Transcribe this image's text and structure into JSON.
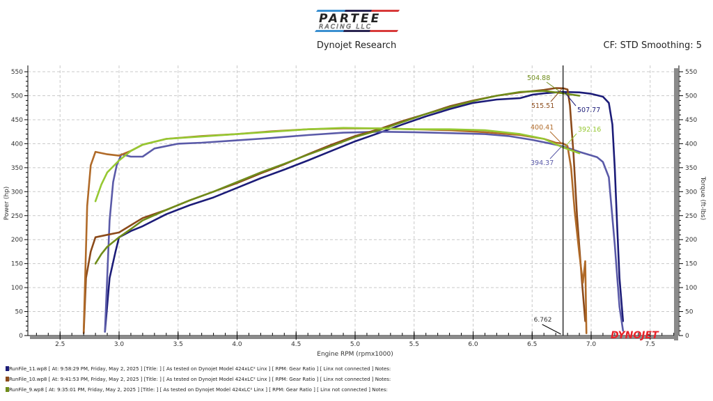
{
  "header": {
    "logo_text_top": "PARTEE",
    "logo_text_bottom": "RACING LLC",
    "title": "Dynojet Research",
    "correction": "CF: STD Smoothing: 5"
  },
  "brand_logo": "DYNOJET",
  "chart_data": {
    "type": "line",
    "title": "Dynojet Research",
    "subtitle": "CF: STD Smoothing: 5",
    "xlabel": "Engine RPM (rpmx1000)",
    "ylabel": "Power (hp)",
    "y2label": "Torque (ft-lbs)",
    "xlim": [
      2.3,
      7.75
    ],
    "ylim": [
      0,
      560
    ],
    "y2lim": [
      0,
      560
    ],
    "x_ticks": [
      "2.5",
      "3.0",
      "3.5",
      "4.0",
      "4.5",
      "5.0",
      "5.5",
      "6.0",
      "6.5",
      "7.0",
      "7.5"
    ],
    "y_ticks": [
      "0",
      "50",
      "100",
      "150",
      "200",
      "250",
      "300",
      "350",
      "400",
      "450",
      "500",
      "550"
    ],
    "y2_ticks": [
      "0",
      "50",
      "100",
      "150",
      "200",
      "250",
      "300",
      "350",
      "400",
      "450",
      "500",
      "550"
    ],
    "grid": true,
    "cursor": {
      "rpm": "6.762"
    },
    "series": [
      {
        "name": "RunFile_11.wp8 Power",
        "run": "RunFile_11",
        "metric": "power",
        "color": "#1c1c78",
        "points": [
          [
            2.88,
            8
          ],
          [
            2.92,
            120
          ],
          [
            2.97,
            175
          ],
          [
            3.0,
            205
          ],
          [
            3.1,
            218
          ],
          [
            3.2,
            228
          ],
          [
            3.4,
            253
          ],
          [
            3.6,
            272
          ],
          [
            3.8,
            288
          ],
          [
            4.0,
            308
          ],
          [
            4.2,
            328
          ],
          [
            4.4,
            346
          ],
          [
            4.6,
            365
          ],
          [
            4.8,
            385
          ],
          [
            5.0,
            405
          ],
          [
            5.2,
            422
          ],
          [
            5.4,
            440
          ],
          [
            5.6,
            457
          ],
          [
            5.8,
            472
          ],
          [
            6.0,
            485
          ],
          [
            6.2,
            492
          ],
          [
            6.4,
            495
          ],
          [
            6.5,
            502
          ],
          [
            6.6,
            505
          ],
          [
            6.7,
            507
          ],
          [
            6.762,
            507.77
          ],
          [
            6.9,
            507
          ],
          [
            7.0,
            504
          ],
          [
            7.1,
            498
          ],
          [
            7.15,
            485
          ],
          [
            7.18,
            440
          ],
          [
            7.2,
            350
          ],
          [
            7.22,
            230
          ],
          [
            7.24,
            120
          ],
          [
            7.26,
            60
          ],
          [
            7.27,
            30
          ]
        ]
      },
      {
        "name": "RunFile_11.wp8 Torque",
        "run": "RunFile_11",
        "metric": "torque",
        "color": "#5a5aa8",
        "points": [
          [
            2.88,
            8
          ],
          [
            2.92,
            240
          ],
          [
            2.95,
            320
          ],
          [
            2.98,
            355
          ],
          [
            3.02,
            378
          ],
          [
            3.1,
            373
          ],
          [
            3.2,
            373
          ],
          [
            3.3,
            390
          ],
          [
            3.5,
            400
          ],
          [
            3.7,
            402
          ],
          [
            4.0,
            407
          ],
          [
            4.3,
            412
          ],
          [
            4.6,
            418
          ],
          [
            4.9,
            423
          ],
          [
            5.2,
            425
          ],
          [
            5.5,
            424
          ],
          [
            5.8,
            422
          ],
          [
            6.1,
            420
          ],
          [
            6.3,
            416
          ],
          [
            6.5,
            408
          ],
          [
            6.7,
            398
          ],
          [
            6.762,
            394.37
          ],
          [
            6.9,
            383
          ],
          [
            7.05,
            372
          ],
          [
            7.1,
            362
          ],
          [
            7.15,
            330
          ],
          [
            7.2,
            190
          ],
          [
            7.24,
            60
          ],
          [
            7.27,
            10
          ]
        ]
      },
      {
        "name": "RunFile_10.wp8 Power",
        "run": "RunFile_10",
        "metric": "power",
        "color": "#8b4a1a",
        "points": [
          [
            2.7,
            5
          ],
          [
            2.72,
            120
          ],
          [
            2.76,
            175
          ],
          [
            2.8,
            205
          ],
          [
            2.9,
            210
          ],
          [
            3.0,
            215
          ],
          [
            3.1,
            230
          ],
          [
            3.2,
            245
          ],
          [
            3.4,
            262
          ],
          [
            3.6,
            282
          ],
          [
            3.8,
            300
          ],
          [
            4.0,
            318
          ],
          [
            4.2,
            338
          ],
          [
            4.4,
            357
          ],
          [
            4.6,
            378
          ],
          [
            4.8,
            398
          ],
          [
            5.0,
            416
          ],
          [
            5.2,
            430
          ],
          [
            5.4,
            447
          ],
          [
            5.6,
            462
          ],
          [
            5.8,
            478
          ],
          [
            6.0,
            490
          ],
          [
            6.2,
            500
          ],
          [
            6.4,
            507
          ],
          [
            6.6,
            512
          ],
          [
            6.7,
            516
          ],
          [
            6.762,
            515.51
          ],
          [
            6.8,
            513
          ],
          [
            6.82,
            480
          ],
          [
            6.85,
            380
          ],
          [
            6.88,
            250
          ],
          [
            6.92,
            120
          ],
          [
            6.95,
            30
          ]
        ]
      },
      {
        "name": "RunFile_10.wp8 Torque",
        "run": "RunFile_10",
        "metric": "torque",
        "color": "#b06a28",
        "points": [
          [
            2.7,
            10
          ],
          [
            2.73,
            270
          ],
          [
            2.76,
            355
          ],
          [
            2.8,
            383
          ],
          [
            2.9,
            378
          ],
          [
            3.0,
            375
          ],
          [
            3.1,
            385
          ],
          [
            3.2,
            398
          ],
          [
            3.4,
            410
          ],
          [
            3.7,
            416
          ],
          [
            4.0,
            420
          ],
          [
            4.3,
            426
          ],
          [
            4.6,
            430
          ],
          [
            4.9,
            432
          ],
          [
            5.2,
            432
          ],
          [
            5.5,
            430
          ],
          [
            5.8,
            428
          ],
          [
            6.1,
            424
          ],
          [
            6.4,
            418
          ],
          [
            6.6,
            410
          ],
          [
            6.7,
            402
          ],
          [
            6.762,
            400.41
          ],
          [
            6.8,
            395
          ],
          [
            6.83,
            350
          ],
          [
            6.86,
            260
          ],
          [
            6.9,
            170
          ],
          [
            6.93,
            110
          ],
          [
            6.95,
            155
          ],
          [
            6.96,
            5
          ]
        ]
      },
      {
        "name": "RunFile_9.wp8 Power",
        "run": "RunFile_9",
        "metric": "power",
        "color": "#6f8c1a",
        "points": [
          [
            2.8,
            150
          ],
          [
            2.85,
            170
          ],
          [
            2.9,
            185
          ],
          [
            3.0,
            205
          ],
          [
            3.1,
            222
          ],
          [
            3.2,
            240
          ],
          [
            3.4,
            262
          ],
          [
            3.6,
            282
          ],
          [
            3.8,
            300
          ],
          [
            4.0,
            320
          ],
          [
            4.2,
            340
          ],
          [
            4.4,
            358
          ],
          [
            4.6,
            377
          ],
          [
            4.8,
            395
          ],
          [
            5.0,
            414
          ],
          [
            5.2,
            428
          ],
          [
            5.4,
            445
          ],
          [
            5.6,
            462
          ],
          [
            5.8,
            476
          ],
          [
            6.0,
            489
          ],
          [
            6.2,
            500
          ],
          [
            6.4,
            508
          ],
          [
            6.6,
            510
          ],
          [
            6.762,
            504.88
          ],
          [
            6.9,
            500
          ]
        ]
      },
      {
        "name": "RunFile_9.wp8 Torque",
        "run": "RunFile_9",
        "metric": "torque",
        "color": "#96c832",
        "points": [
          [
            2.8,
            280
          ],
          [
            2.85,
            315
          ],
          [
            2.9,
            340
          ],
          [
            3.0,
            365
          ],
          [
            3.1,
            385
          ],
          [
            3.2,
            398
          ],
          [
            3.4,
            410
          ],
          [
            3.7,
            415
          ],
          [
            4.0,
            420
          ],
          [
            4.3,
            425
          ],
          [
            4.6,
            430
          ],
          [
            4.9,
            433
          ],
          [
            5.2,
            432
          ],
          [
            5.5,
            430
          ],
          [
            5.8,
            430
          ],
          [
            6.1,
            428
          ],
          [
            6.4,
            420
          ],
          [
            6.6,
            410
          ],
          [
            6.762,
            392.16
          ],
          [
            6.9,
            380
          ]
        ]
      }
    ],
    "annotations": [
      {
        "label": "504.88",
        "color": "#6f8c1a",
        "x": 6.762,
        "y": 504.88
      },
      {
        "label": "515.51",
        "color": "#8b4a1a",
        "x": 6.762,
        "y": 515.51
      },
      {
        "label": "507.77",
        "color": "#1c1c78",
        "x": 6.762,
        "y": 507.77
      },
      {
        "label": "400.41",
        "color": "#b06a28",
        "x": 6.762,
        "y": 400.41
      },
      {
        "label": "392.16",
        "color": "#96c832",
        "x": 6.762,
        "y": 392.16
      },
      {
        "label": "394.37",
        "color": "#5a5aa8",
        "x": 6.762,
        "y": 394.37
      }
    ]
  },
  "legend": [
    {
      "color": "#1c1c78",
      "text": "RunFile_11.wp8 [ At: 9:58:29 PM, Friday, May 2, 2025 ] [Title: ]  [ As tested on Dynojet Model 424xLC² Linx ] [ RPM: Gear Ratio ] [ Linx not connected ] Notes:"
    },
    {
      "color": "#8b4a1a",
      "text": "RunFile_10.wp8 [ At: 9:41:53 PM, Friday, May 2, 2025 ] [Title: ]  [ As tested on Dynojet Model 424xLC² Linx ] [ RPM: Gear Ratio ] [ Linx not connected ] Notes:"
    },
    {
      "color": "#6f8c1a",
      "text": "RunFile_9.wp8 [ At: 9:35:01 PM, Friday, May 2, 2025 ] [Title: ]  [ As tested on Dynojet Model 424xLC² Linx ] [ RPM: Gear Ratio ] [ Linx not connected ] Notes:"
    }
  ]
}
